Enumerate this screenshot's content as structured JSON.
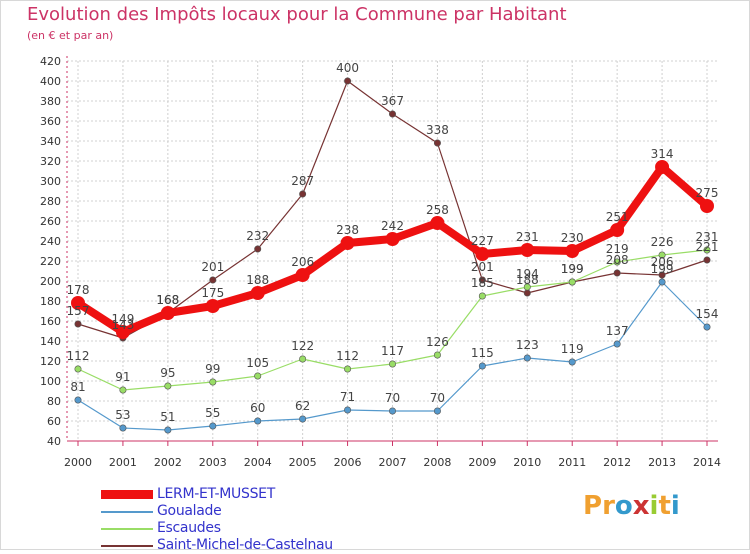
{
  "title": "Evolution des Impôts locaux pour la Commune par Habitant",
  "subtitle": "(en € et par an)",
  "logo": {
    "text": "Proxiti",
    "letters": [
      "P",
      "r",
      "o",
      "x",
      "i",
      "t",
      "i"
    ],
    "colors": [
      "#f0a030",
      "#f0a030",
      "#3399cc",
      "#cc3333",
      "#99cc33",
      "#f0a030",
      "#3399cc"
    ]
  },
  "chart_data": {
    "type": "line",
    "x": [
      2000,
      2001,
      2002,
      2003,
      2004,
      2005,
      2006,
      2007,
      2008,
      2009,
      2010,
      2011,
      2012,
      2013,
      2014
    ],
    "ylim": [
      40,
      420
    ],
    "yticks": [
      40,
      60,
      80,
      100,
      120,
      140,
      160,
      180,
      200,
      220,
      240,
      260,
      280,
      300,
      320,
      340,
      360,
      380,
      400,
      420
    ],
    "grid": true,
    "series": [
      {
        "name": "LERM-ET-MUSSET",
        "color": "#ee1111",
        "width": 8,
        "values": [
          178,
          149,
          168,
          175,
          188,
          206,
          238,
          242,
          258,
          227,
          231,
          230,
          251,
          314,
          275
        ]
      },
      {
        "name": "Goualade",
        "color": "#5599cc",
        "width": 1.2,
        "values": [
          81,
          53,
          51,
          55,
          60,
          62,
          71,
          70,
          70,
          115,
          123,
          119,
          137,
          199,
          154
        ]
      },
      {
        "name": "Escaudes",
        "color": "#99dd66",
        "width": 1.2,
        "values": [
          112,
          91,
          95,
          99,
          105,
          122,
          112,
          117,
          126,
          185,
          194,
          199,
          219,
          226,
          231
        ]
      },
      {
        "name": "Saint-Michel-de-Castelnau",
        "color": "#773333",
        "width": 1.2,
        "values": [
          157,
          143,
          168,
          201,
          232,
          287,
          400,
          367,
          338,
          201,
          188,
          199,
          208,
          206,
          221
        ]
      }
    ]
  }
}
